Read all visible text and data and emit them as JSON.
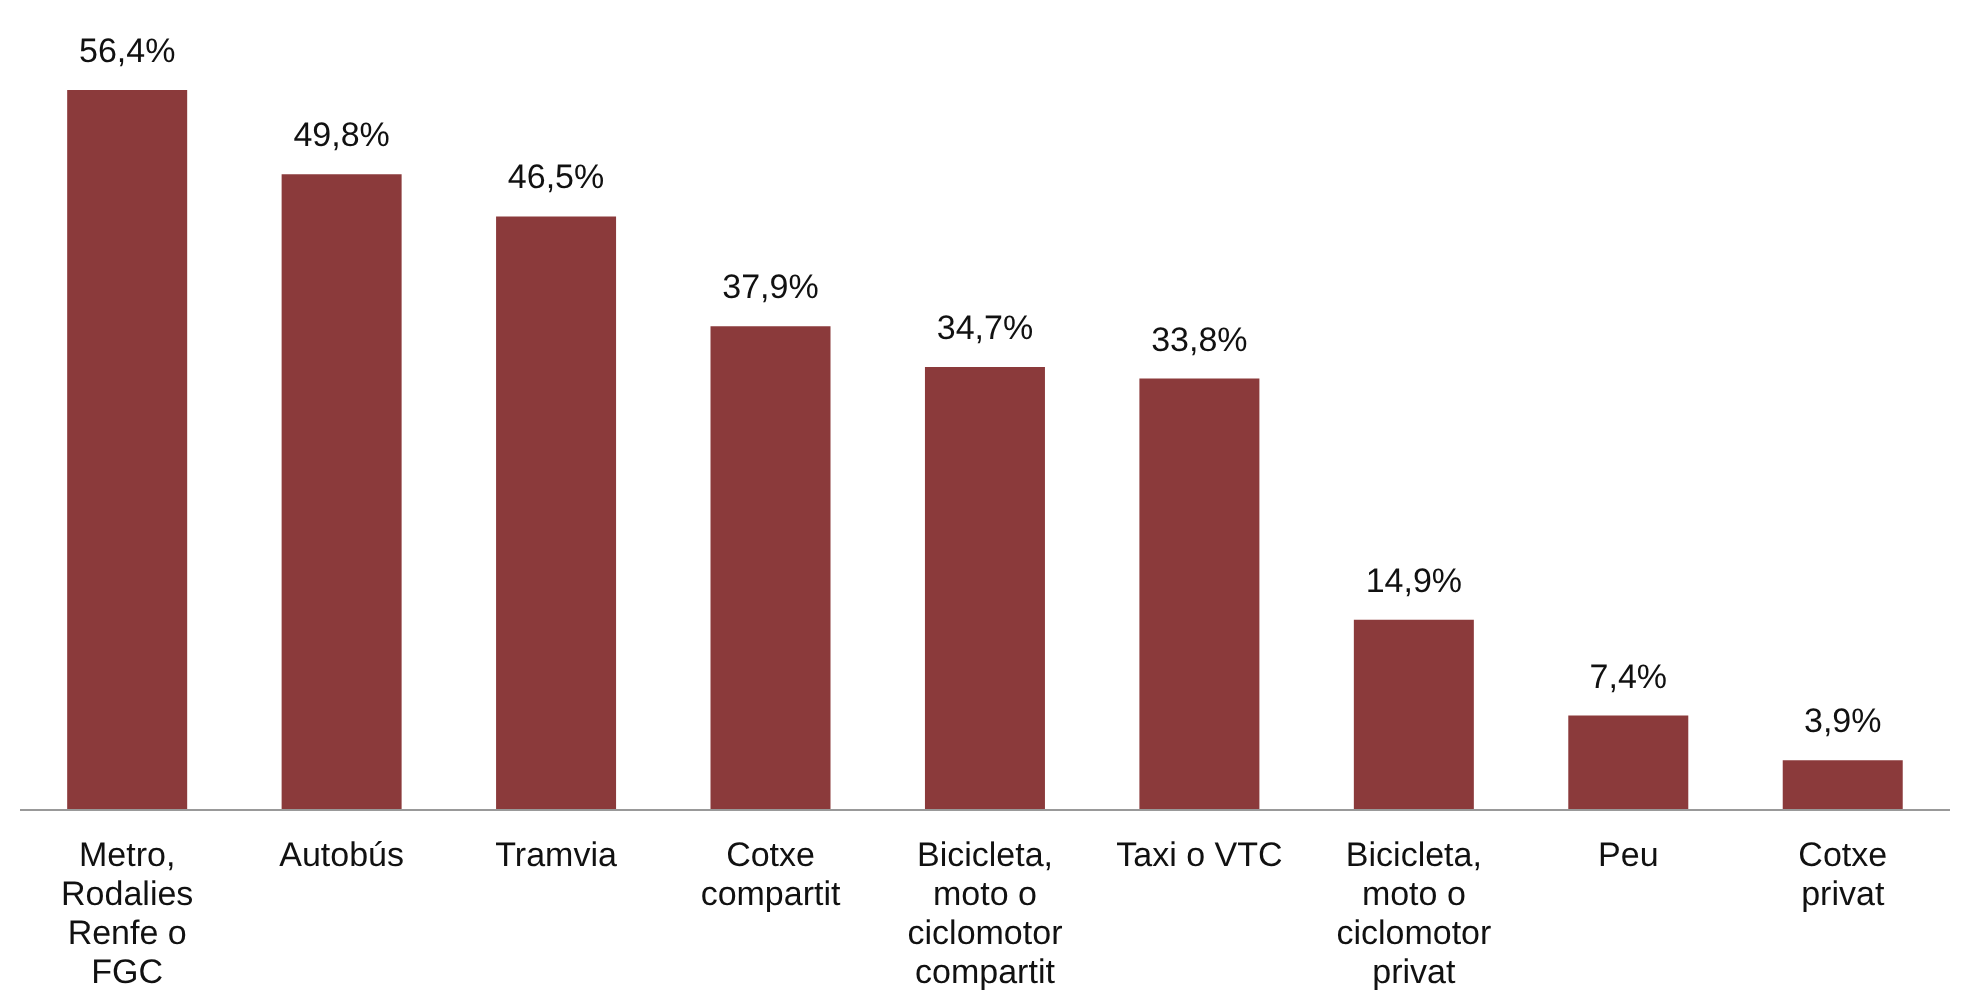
{
  "chart_data": {
    "type": "bar",
    "categories": [
      "Metro, Rodalies Renfe o FGC",
      "Autobús",
      "Tramvia",
      "Cotxe compartit",
      "Bicicleta, moto o ciclomotor compartit",
      "Taxi o VTC",
      "Bicicleta, moto o ciclomotor privat",
      "Peu",
      "Cotxe privat"
    ],
    "values": [
      56.4,
      49.8,
      46.5,
      37.9,
      34.7,
      33.8,
      14.9,
      7.4,
      3.9
    ],
    "value_labels": [
      "56,4%",
      "49,8%",
      "46,5%",
      "37,9%",
      "34,7%",
      "33,8%",
      "14,9%",
      "7,4%",
      "3,9%"
    ],
    "color": "#8b3a3b",
    "grid": false,
    "legend": false
  }
}
